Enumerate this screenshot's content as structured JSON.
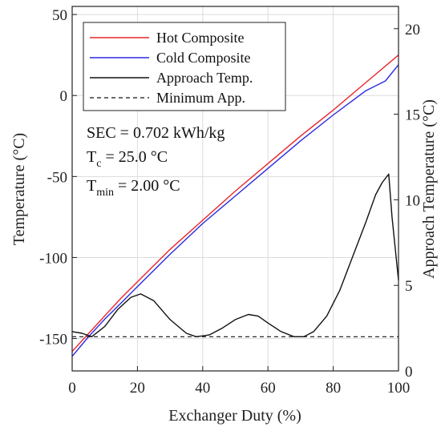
{
  "chart_data": {
    "type": "line",
    "xlabel": "Exchanger Duty (%)",
    "ylabel": "Temperature (°C)",
    "y2label": "Approach Temperature (°C)",
    "xlim": [
      0,
      100
    ],
    "ylim": [
      -170,
      55
    ],
    "y2lim": [
      0,
      21.3
    ],
    "x_ticks": [
      "0",
      "20",
      "40",
      "60",
      "80",
      "100"
    ],
    "y_ticks": [
      "50",
      "0",
      "-50",
      "-100",
      "-150"
    ],
    "y2_ticks": [
      "0",
      "5",
      "10",
      "15",
      "20"
    ],
    "grid": true,
    "legend_position": "top-left",
    "colors": {
      "hot": "#e8262a",
      "cold": "#2a2ae0",
      "approach": "#111111",
      "minimum": "#111111"
    },
    "annotations": {
      "sec": "SEC = 0.702 kWh/kg",
      "tc_main": "T",
      "tc_sub": "c",
      "tc_value": " =  25.0 °C",
      "tmin_main": "T",
      "tmin_sub": "min",
      "tmin_value": " =  2.00 °C"
    },
    "series": [
      {
        "name": "Hot Composite",
        "axis": "left",
        "style": "solid",
        "x": [
          0,
          5,
          10,
          15,
          20,
          30,
          40,
          50,
          60,
          70,
          80,
          90,
          100
        ],
        "y": [
          -158,
          -147,
          -136,
          -125,
          -115,
          -95,
          -77,
          -59,
          -42,
          -25,
          -9,
          8,
          25
        ]
      },
      {
        "name": "Cold Composite",
        "axis": "left",
        "style": "solid",
        "x": [
          0,
          5,
          10,
          15,
          20,
          30,
          40,
          50,
          60,
          70,
          80,
          90,
          96,
          100
        ],
        "y": [
          -161,
          -149,
          -138,
          -128,
          -118,
          -98,
          -79,
          -62,
          -45,
          -28,
          -12,
          3,
          9,
          19
        ]
      },
      {
        "name": "Approach Temp.",
        "axis": "right",
        "style": "solid",
        "x": [
          0,
          3,
          6,
          10,
          14,
          18,
          21,
          25,
          30,
          35,
          38,
          42,
          46,
          50,
          54,
          57,
          60,
          64,
          68,
          71,
          74,
          78,
          82,
          86,
          90,
          93,
          95,
          97,
          98,
          100
        ],
        "y": [
          2.3,
          2.2,
          2.0,
          2.6,
          3.6,
          4.3,
          4.5,
          4.1,
          3.0,
          2.2,
          2.0,
          2.1,
          2.5,
          3.0,
          3.3,
          3.2,
          2.8,
          2.3,
          2.0,
          2.0,
          2.3,
          3.2,
          4.7,
          6.7,
          8.7,
          10.3,
          11.0,
          11.5,
          9.0,
          5.3
        ]
      },
      {
        "name": "Minimum App.",
        "axis": "right",
        "style": "dashed",
        "x": [
          0,
          100
        ],
        "y": [
          2.0,
          2.0
        ]
      }
    ]
  }
}
